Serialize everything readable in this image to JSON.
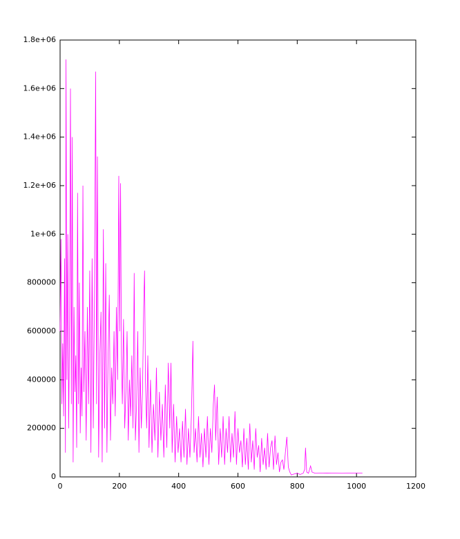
{
  "chart_data": {
    "type": "line",
    "color": "#ff00ff",
    "xlim": [
      0,
      1200
    ],
    "xticks": [
      0,
      200,
      400,
      600,
      800,
      1000,
      1200
    ],
    "ylim": [
      0,
      1800000
    ],
    "yticks": [
      0,
      200000,
      400000,
      600000,
      800000,
      {
        "value": 1000000,
        "label": "1e+06"
      },
      {
        "value": 1200000,
        "label": "1.2e+06"
      },
      {
        "value": 1400000,
        "label": "1.4e+06"
      },
      {
        "value": 1600000,
        "label": "1.6e+06"
      },
      {
        "value": 1800000,
        "label": "1.8e+06"
      }
    ],
    "x": [
      0,
      3,
      6,
      9,
      12,
      15,
      18,
      20,
      23,
      26,
      29,
      32,
      35,
      38,
      41,
      44,
      47,
      50,
      53,
      56,
      59,
      62,
      65,
      68,
      71,
      74,
      77,
      80,
      84,
      88,
      92,
      96,
      100,
      104,
      108,
      112,
      116,
      120,
      123,
      126,
      130,
      134,
      138,
      142,
      146,
      150,
      154,
      158,
      162,
      166,
      170,
      174,
      178,
      182,
      186,
      190,
      194,
      198,
      201,
      204,
      207,
      210,
      214,
      218,
      222,
      226,
      230,
      234,
      238,
      242,
      246,
      250,
      254,
      258,
      262,
      266,
      270,
      274,
      278,
      282,
      285,
      288,
      292,
      296,
      300,
      305,
      310,
      315,
      320,
      325,
      330,
      335,
      340,
      345,
      350,
      355,
      360,
      365,
      370,
      374,
      378,
      383,
      388,
      393,
      398,
      403,
      408,
      413,
      418,
      423,
      428,
      433,
      438,
      443,
      448,
      452,
      457,
      462,
      467,
      472,
      477,
      482,
      487,
      492,
      497,
      502,
      507,
      512,
      517,
      521,
      525,
      530,
      535,
      540,
      545,
      550,
      555,
      560,
      565,
      570,
      575,
      580,
      585,
      590,
      595,
      600,
      605,
      610,
      615,
      620,
      625,
      630,
      635,
      640,
      645,
      650,
      655,
      660,
      665,
      670,
      675,
      680,
      685,
      690,
      695,
      700,
      705,
      710,
      715,
      720,
      725,
      730,
      735,
      740,
      745,
      750,
      755,
      760,
      765,
      770,
      775,
      780,
      790,
      800,
      810,
      820,
      825,
      828,
      832,
      838,
      845,
      850,
      860,
      900,
      950,
      1000,
      1020
    ],
    "values": [
      600000,
      980000,
      300000,
      550000,
      250000,
      900000,
      100000,
      1720000,
      400000,
      1000000,
      200000,
      650000,
      1600000,
      300000,
      1400000,
      60000,
      700000,
      350000,
      500000,
      120000,
      1170000,
      300000,
      800000,
      180000,
      450000,
      250000,
      1200000,
      350000,
      600000,
      150000,
      700000,
      300000,
      850000,
      100000,
      900000,
      200000,
      750000,
      1670000,
      300000,
      1320000,
      80000,
      500000,
      680000,
      60000,
      1020000,
      200000,
      880000,
      100000,
      500000,
      750000,
      150000,
      450000,
      300000,
      600000,
      250000,
      700000,
      400000,
      1240000,
      600000,
      1210000,
      500000,
      300000,
      650000,
      200000,
      350000,
      600000,
      150000,
      400000,
      250000,
      500000,
      200000,
      840000,
      150000,
      300000,
      600000,
      100000,
      450000,
      200000,
      350000,
      700000,
      850000,
      400000,
      200000,
      500000,
      120000,
      400000,
      100000,
      300000,
      150000,
      450000,
      80000,
      350000,
      150000,
      300000,
      80000,
      380000,
      120000,
      470000,
      200000,
      470000,
      100000,
      300000,
      60000,
      250000,
      100000,
      200000,
      60000,
      230000,
      80000,
      280000,
      50000,
      200000,
      80000,
      250000,
      560000,
      100000,
      200000,
      60000,
      250000,
      80000,
      180000,
      40000,
      200000,
      80000,
      250000,
      50000,
      200000,
      100000,
      300000,
      380000,
      150000,
      330000,
      50000,
      200000,
      80000,
      250000,
      50000,
      200000,
      100000,
      250000,
      60000,
      180000,
      80000,
      270000,
      50000,
      200000,
      100000,
      150000,
      40000,
      200000,
      50000,
      160000,
      30000,
      220000,
      60000,
      150000,
      30000,
      200000,
      80000,
      130000,
      20000,
      160000,
      50000,
      120000,
      30000,
      180000,
      40000,
      120000,
      150000,
      30000,
      170000,
      50000,
      100000,
      20000,
      60000,
      70000,
      30000,
      100000,
      165000,
      40000,
      20000,
      8000,
      12000,
      15000,
      10000,
      15000,
      30000,
      120000,
      20000,
      15000,
      45000,
      20000,
      15000,
      16000,
      15000,
      16000,
      16000
    ]
  }
}
